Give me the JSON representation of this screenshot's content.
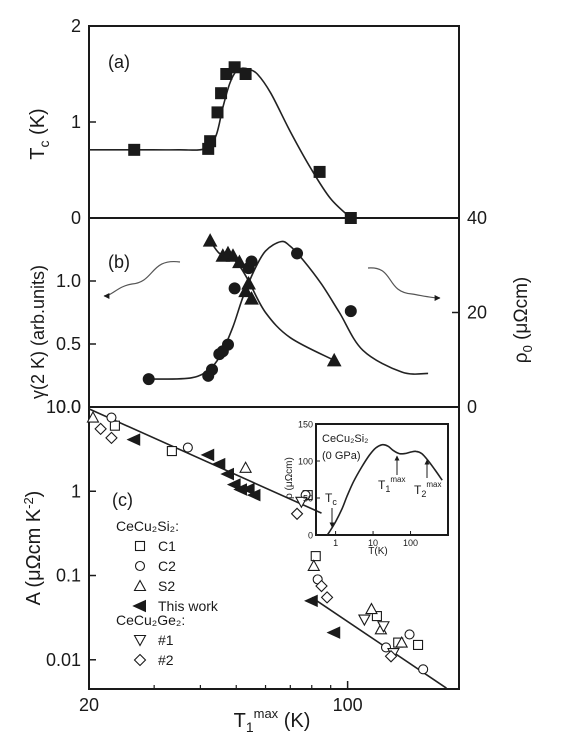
{
  "chart_data": [
    {
      "panel": "(a)",
      "type": "line",
      "ylabel": "T_c (K)",
      "xscale": "log",
      "xlim": [
        20,
        200
      ],
      "ylim": [
        0,
        2
      ],
      "yticks": [
        "0",
        "1",
        "2"
      ],
      "series": [
        {
          "marker": "filled-square",
          "x": [
            26.5,
            42,
            42.5,
            44.5,
            45.5,
            47,
            49.5,
            53,
            84,
            102
          ],
          "y": [
            0.71,
            0.72,
            0.8,
            1.1,
            1.3,
            1.5,
            1.57,
            1.5,
            0.48,
            0.0
          ]
        }
      ],
      "fit": {
        "x": [
          20,
          27,
          35,
          41,
          44,
          46,
          48,
          50,
          52,
          54,
          57,
          62,
          70,
          80,
          90,
          102
        ],
        "y": [
          0.71,
          0.71,
          0.71,
          0.72,
          0.85,
          1.15,
          1.4,
          1.53,
          1.56,
          1.55,
          1.5,
          1.3,
          0.9,
          0.5,
          0.2,
          0.0
        ],
        "dashed_below_x": 26.5
      }
    },
    {
      "panel": "(b)",
      "type": "line",
      "ylabel": "γ(2 K) (arb.units)",
      "ylabel_right": "ρ_0 (μΩcm)",
      "xscale": "log",
      "xlim": [
        20,
        200
      ],
      "ylim": [
        0,
        1.5
      ],
      "yticks": [
        "0.0",
        "0.5",
        "1.0"
      ],
      "ylim_right": [
        0,
        40
      ],
      "yticks_right": [
        "0",
        "20",
        "40"
      ],
      "series": [
        {
          "marker": "filled-triangle",
          "axis": "left",
          "x": [
            42.5,
            46,
            47.5,
            49,
            51,
            53,
            54,
            55,
            92
          ],
          "y": [
            1.32,
            1.2,
            1.22,
            1.2,
            1.15,
            0.92,
            0.98,
            0.86,
            0.37
          ]
        },
        {
          "marker": "filled-circle",
          "axis": "right",
          "x": [
            29,
            42,
            43,
            45,
            46,
            47.5,
            49.5,
            54,
            55,
            73,
            102
          ],
          "y": [
            5.9,
            6.6,
            7.9,
            11.2,
            11.8,
            13.2,
            25.1,
            29.4,
            30.8,
            32.5,
            20.3
          ]
        }
      ],
      "fit_triangle": {
        "x": [
          42.5,
          45,
          48,
          51,
          54,
          60,
          70,
          92
        ],
        "y": [
          1.32,
          1.22,
          1.2,
          1.12,
          1.0,
          0.75,
          0.55,
          0.37
        ]
      },
      "fit_circle": {
        "x": [
          29,
          38,
          43,
          46,
          49,
          52,
          56,
          60,
          66,
          70,
          76,
          85,
          95,
          110,
          140,
          165
        ],
        "y": [
          5.9,
          6.2,
          8.5,
          12,
          17,
          23,
          29,
          33,
          35,
          34,
          31,
          26,
          20,
          12,
          7.4,
          7.1
        ]
      },
      "annotation": "arrows point each curve to its axis: left for γ, right for ρ_0"
    },
    {
      "panel": "(c)",
      "type": "scatter",
      "ylabel": "A (μΩcm K⁻²)",
      "xlabel": "T₁ᵐᵃˣ (K)",
      "xscale": "log",
      "yscale": "log",
      "xlim": [
        20,
        200
      ],
      "ylim": [
        0.0045,
        10
      ],
      "xticks": [
        "20",
        "100"
      ],
      "yticks": [
        "0.01",
        "0.1",
        "1",
        "10.0"
      ],
      "legend_title_1": "CeCu₂Si₂:",
      "legend_title_2": "CeCu₂Ge₂:",
      "series": [
        {
          "name": "C1",
          "marker": "open-square",
          "x": [
            23.5,
            33.5,
            78,
            82,
            120,
            137,
            155
          ],
          "y": [
            6,
            3,
            0.9,
            0.17,
            0.033,
            0.016,
            0.015
          ]
        },
        {
          "name": "C2",
          "marker": "open-circle",
          "x": [
            23,
            37,
            77,
            83,
            127,
            147,
            160
          ],
          "y": [
            7.5,
            3.3,
            0.9,
            0.09,
            0.014,
            0.02,
            0.0077
          ]
        },
        {
          "name": "S2",
          "marker": "open-triangle",
          "x": [
            20.5,
            53,
            81,
            116,
            123,
            140
          ],
          "y": [
            7.5,
            1.9,
            0.13,
            0.04,
            0.023,
            0.016
          ]
        },
        {
          "name": "This work",
          "marker": "filled-left-triangle",
          "x": [
            26.5,
            42,
            45,
            47.5,
            49.5,
            51.5,
            54,
            56,
            80,
            92
          ],
          "y": [
            4.1,
            2.7,
            2.1,
            1.6,
            1.2,
            1.05,
            1.06,
            0.9,
            0.05,
            0.021
          ]
        },
        {
          "name": "#1",
          "marker": "open-down-triangle",
          "x": [
            75,
            111,
            125,
            133
          ],
          "y": [
            0.75,
            0.03,
            0.025,
            0.012
          ]
        },
        {
          "name": "#2",
          "marker": "open-diamond",
          "x": [
            21.5,
            23,
            73,
            85,
            88,
            131
          ],
          "y": [
            5.5,
            4.3,
            0.54,
            0.075,
            0.055,
            0.011
          ]
        }
      ],
      "fit_lines": [
        {
          "x": [
            20,
            85
          ],
          "y": [
            9.5,
            0.55
          ]
        },
        {
          "x": [
            80,
            185
          ],
          "y": [
            0.055,
            0.0046
          ]
        }
      ],
      "inset": {
        "type": "line",
        "title": "CeCu₂Si₂",
        "subtitle": "(0 GPa)",
        "ylabel": "ρ (μΩcm)",
        "xlabel": "T(K)",
        "xscale": "log",
        "xlim": [
          0.3,
          1000
        ],
        "xticks": [
          "1",
          "10",
          "100"
        ],
        "ylim": [
          0,
          150
        ],
        "yticks": [
          "0",
          "50",
          "100",
          "150"
        ],
        "annotations": [
          "T_c",
          "T₁ᵐᵃˣ",
          "T₂ᵐᵃˣ"
        ],
        "curve": {
          "x": [
            0.6,
            0.7,
            1,
            1.5,
            2,
            3,
            5,
            8,
            12,
            18,
            25,
            35,
            50,
            70,
            100,
            140,
            200,
            300,
            450,
            700
          ],
          "y": [
            0,
            5,
            18,
            36,
            52,
            72,
            92,
            108,
            118,
            122,
            120,
            114,
            110,
            110,
            112,
            113,
            110,
            100,
            88,
            74
          ]
        }
      }
    }
  ]
}
